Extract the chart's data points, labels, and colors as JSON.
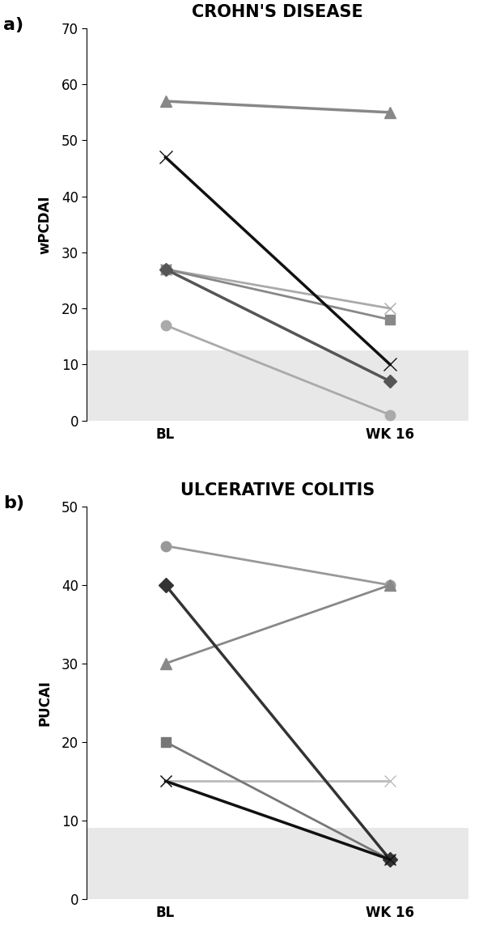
{
  "panel_a": {
    "title": "CROHN'S DISEASE",
    "ylabel": "wPCDAI",
    "ylim": [
      0,
      70
    ],
    "yticks": [
      0,
      10,
      20,
      30,
      40,
      50,
      60,
      70
    ],
    "shaded_region": [
      0,
      12.5
    ],
    "series": [
      {
        "bl": 57,
        "wk16": 55,
        "marker": "^",
        "color": "#888888",
        "linewidth": 2.5,
        "markersize": 10,
        "zorder": 2
      },
      {
        "bl": 47,
        "wk16": 10,
        "marker": "x",
        "color": "#111111",
        "linewidth": 2.5,
        "markersize": 11,
        "zorder": 4
      },
      {
        "bl": 27,
        "wk16": 20,
        "marker": "x",
        "color": "#aaaaaa",
        "linewidth": 2.0,
        "markersize": 10,
        "zorder": 2
      },
      {
        "bl": 27,
        "wk16": 18,
        "marker": "s",
        "color": "#888888",
        "linewidth": 2.0,
        "markersize": 9,
        "zorder": 3
      },
      {
        "bl": 17,
        "wk16": 1,
        "marker": "o",
        "color": "#aaaaaa",
        "linewidth": 2.0,
        "markersize": 9,
        "zorder": 2
      },
      {
        "bl": 27,
        "wk16": 7,
        "marker": "D",
        "color": "#555555",
        "linewidth": 2.5,
        "markersize": 8,
        "zorder": 3
      }
    ]
  },
  "panel_b": {
    "title": "ULCERATIVE COLITIS",
    "ylabel": "PUCAI",
    "ylim": [
      0,
      50
    ],
    "yticks": [
      0,
      10,
      20,
      30,
      40,
      50
    ],
    "shaded_region": [
      0,
      9
    ],
    "series": [
      {
        "bl": 45,
        "wk16": 40,
        "marker": "o",
        "color": "#999999",
        "linewidth": 2.0,
        "markersize": 9,
        "zorder": 2
      },
      {
        "bl": 40,
        "wk16": 5,
        "marker": "D",
        "color": "#333333",
        "linewidth": 2.5,
        "markersize": 9,
        "zorder": 4
      },
      {
        "bl": 30,
        "wk16": 40,
        "marker": "^",
        "color": "#888888",
        "linewidth": 2.0,
        "markersize": 10,
        "zorder": 2
      },
      {
        "bl": 20,
        "wk16": 5,
        "marker": "s",
        "color": "#777777",
        "linewidth": 2.0,
        "markersize": 9,
        "zorder": 3
      },
      {
        "bl": 15,
        "wk16": 15,
        "marker": "x",
        "color": "#bbbbbb",
        "linewidth": 2.0,
        "markersize": 10,
        "zorder": 2
      },
      {
        "bl": 15,
        "wk16": 5,
        "marker": "x",
        "color": "#111111",
        "linewidth": 2.5,
        "markersize": 10,
        "zorder": 4
      }
    ]
  },
  "xtick_labels": [
    "BL",
    "WK 16"
  ],
  "xtick_positions": [
    0,
    1
  ],
  "label_a": "a)",
  "label_b": "b)",
  "shaded_color": "#e8e8e8",
  "title_fontsize": 15,
  "ylabel_fontsize": 12,
  "tick_fontsize": 12,
  "panel_label_fontsize": 16
}
